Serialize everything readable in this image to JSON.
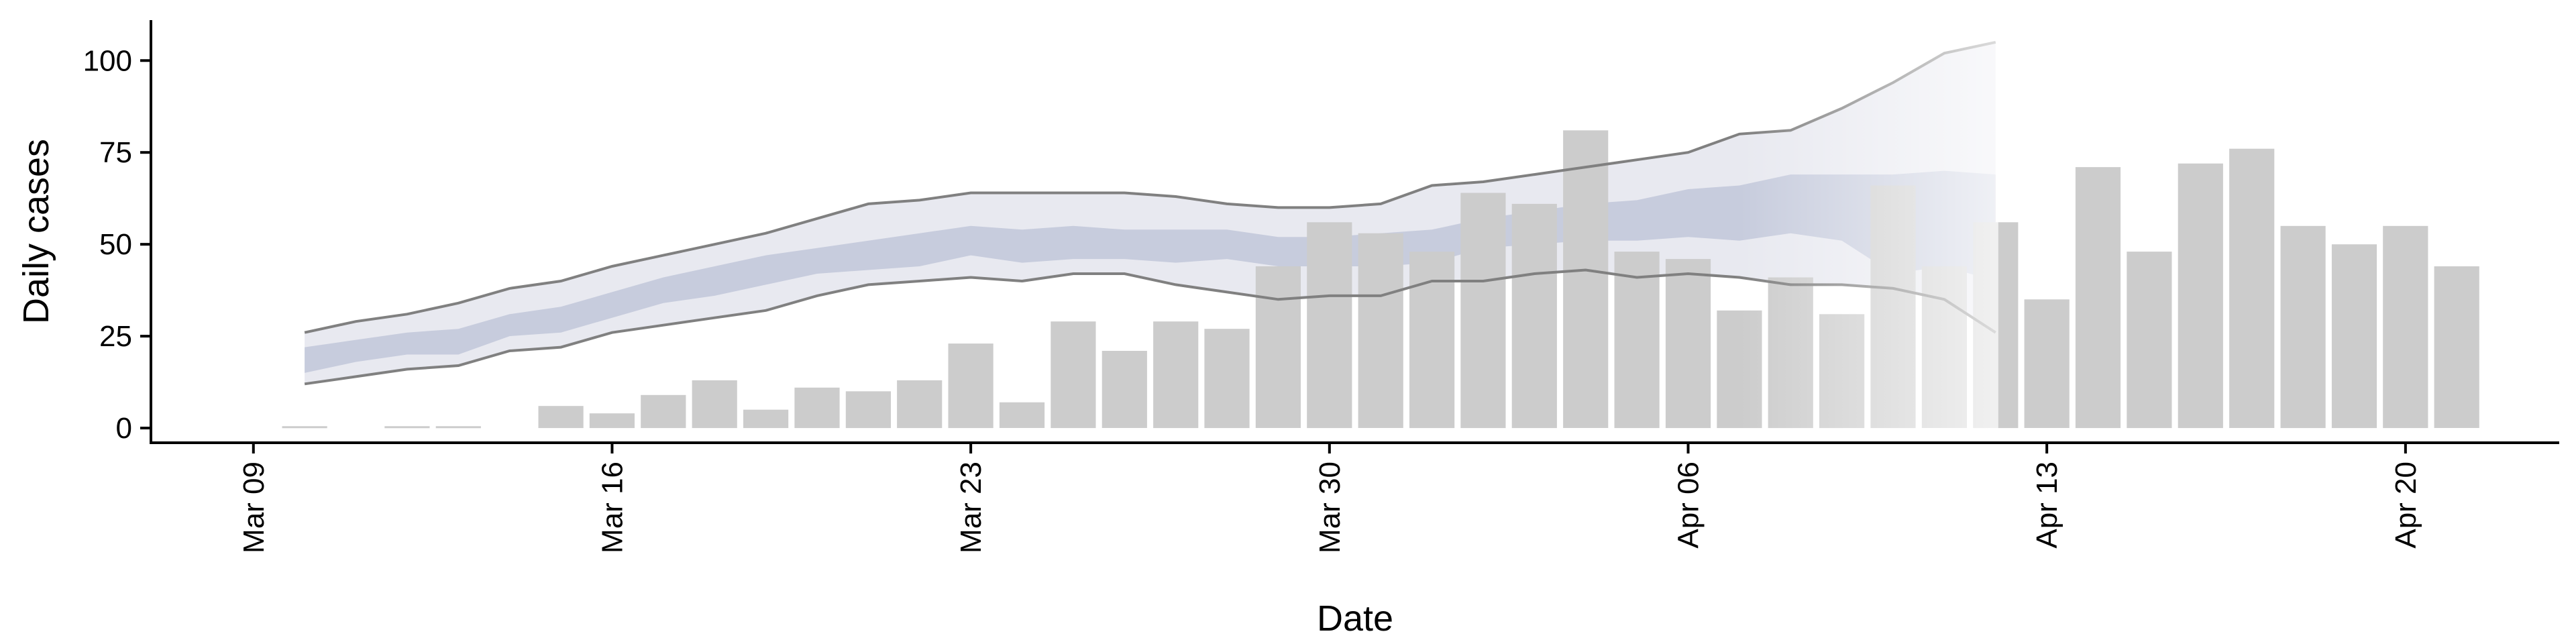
{
  "chart_data": {
    "type": "bar",
    "xlabel": "Date",
    "ylabel": "Daily cases",
    "ylim": [
      -4,
      111
    ],
    "xlim": [
      "2020-03-07",
      "2020-04-23"
    ],
    "grid": false,
    "legend": "none",
    "x_ticks": [
      "2020-03-09",
      "2020-03-16",
      "2020-03-23",
      "2020-03-30",
      "2020-04-06",
      "2020-04-13",
      "2020-04-20"
    ],
    "x_tick_labels": [
      "Mar 09",
      "Mar 16",
      "Mar 23",
      "Mar 30",
      "Apr 06",
      "Apr 13",
      "Apr 20"
    ],
    "y_ticks": [
      0,
      25,
      50,
      75,
      100
    ],
    "y_tick_labels": [
      "0",
      "25",
      "50",
      "75",
      "100"
    ],
    "bars": {
      "start_date": "2020-03-10",
      "values": [
        0.5,
        0,
        0.5,
        0.5,
        0,
        6,
        4,
        9,
        13,
        5,
        11,
        10,
        13,
        23,
        7,
        29,
        21,
        29,
        27,
        44,
        56,
        53,
        48,
        64,
        61,
        81,
        48,
        46,
        32,
        41,
        31,
        66,
        44,
        56,
        35,
        71,
        48,
        72,
        76,
        55,
        50,
        55,
        44
      ]
    },
    "bands": {
      "start_date": "2020-03-10",
      "outer_upper": [
        26,
        29,
        31,
        34,
        38,
        40,
        44,
        47,
        50,
        53,
        57,
        61,
        62,
        64,
        64,
        64,
        64,
        63,
        61,
        60,
        60,
        61,
        66,
        67,
        69,
        71,
        73,
        75,
        80,
        81,
        87,
        94,
        102,
        105
      ],
      "outer_lower": [
        12,
        14,
        16,
        17,
        21,
        22,
        26,
        28,
        30,
        32,
        36,
        39,
        40,
        41,
        40,
        42,
        42,
        39,
        37,
        35,
        36,
        36,
        40,
        40,
        42,
        43,
        41,
        42,
        41,
        39,
        39,
        38,
        35,
        26
      ],
      "inner_upper": [
        22,
        24,
        26,
        27,
        31,
        33,
        37,
        41,
        44,
        47,
        49,
        51,
        53,
        55,
        54,
        55,
        54,
        54,
        54,
        52,
        52,
        53,
        54,
        57,
        59,
        61,
        62,
        65,
        66,
        69,
        69,
        69,
        70,
        69
      ],
      "inner_lower": [
        15,
        18,
        20,
        20,
        25,
        26,
        30,
        34,
        36,
        39,
        42,
        43,
        44,
        47,
        45,
        46,
        46,
        45,
        46,
        44,
        44,
        44,
        45,
        49,
        50,
        51,
        51,
        52,
        51,
        53,
        51,
        42,
        44,
        40
      ]
    },
    "colors": {
      "bar": "#cccccc",
      "outer_band": "#e8e9f0",
      "inner_band": "#c7ccdd",
      "bound_line": "#808080",
      "axis": "#000000"
    }
  }
}
